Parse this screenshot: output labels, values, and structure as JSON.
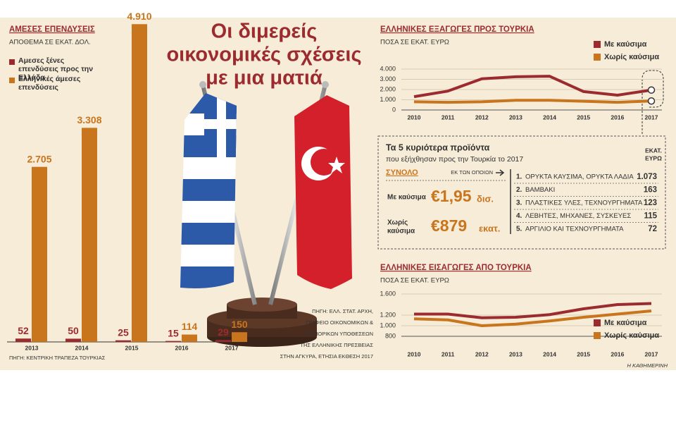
{
  "header": {
    "title_lines": [
      "Οι διμερείς",
      "οικονομικές σχέσεις",
      "με μια ματιά"
    ],
    "credit": "Η ΚΑΘΗΜΕΡΙΝΗ",
    "source_lines": [
      "ΠΗΓΗ: ΕΛΛ. ΣΤΑΤ. ΑΡΧΗ,",
      "ΓΡΑΦΕΙΟ ΟΙΚΟΝΟΜΙΚΩΝ &",
      "ΕΜΠΟΡΙΚΩΝ ΥΠΟΘΕΣΕΩΝ",
      "ΤΗΣ ΕΛΛΗΝΙΚΗΣ ΠΡΕΣΒΕΙΑΣ",
      "ΣΤΗΝ ΑΓΚΥΡΑ, ΕΤΗΣΙΑ ΕΚΘΕΣΗ 2017"
    ]
  },
  "chart_data": [
    {
      "type": "bar",
      "title": "ΑΜΕΣΕΣ ΕΠΕΝΔΥΣΕΙΣ",
      "subtitle": "ΑΠΟΘΕΜΑ ΣΕ ΕΚΑΤ. ΔΟΛ.",
      "source": "ΠΗΓΗ: ΚΕΝΤΡΙΚΗ ΤΡΑΠΕΖΑ ΤΟΥΡΚΙΑΣ",
      "categories": [
        "2013",
        "2014",
        "2015",
        "2016",
        "2017"
      ],
      "series": [
        {
          "name": "Αμεσες ξένες επενδύσεις προς την Ελλάδα",
          "color": "#9c2b30",
          "values": [
            52,
            50,
            25,
            15,
            29
          ]
        },
        {
          "name": "Ελληνικές άμεσες επενδύσεις",
          "color": "#c9751e",
          "values": [
            2705,
            3308,
            4910,
            114,
            150
          ],
          "value_labels": [
            "2.705",
            "3.308",
            "4.910",
            "114",
            "150"
          ]
        }
      ],
      "ylim": [
        0,
        5000
      ]
    },
    {
      "type": "line",
      "title": "ΕΛΛΗΝΙΚΕΣ ΕΞΑΓΩΓΕΣ ΠΡΟΣ ΤΟΥΡΚΙΑ",
      "subtitle": "ΠΟΣΑ ΣΕ ΕΚΑΤ. ΕΥΡΩ",
      "categories": [
        "2010",
        "2011",
        "2012",
        "2013",
        "2014",
        "2015",
        "2016",
        "2017"
      ],
      "series": [
        {
          "name": "Με καύσιμα",
          "color": "#9c2b30",
          "values": [
            1300,
            1850,
            3050,
            3250,
            3300,
            1800,
            1450,
            1950
          ]
        },
        {
          "name": "Χωρίς καύσιμα",
          "color": "#c9751e",
          "values": [
            800,
            750,
            800,
            950,
            950,
            850,
            750,
            879
          ]
        }
      ],
      "ylim": [
        0,
        4000
      ],
      "yticks": [
        0,
        {
          "value": 1000,
          "label": "1.000"
        },
        {
          "value": 2000,
          "label": "2.000"
        },
        {
          "value": 3000,
          "label": "3.000"
        },
        {
          "value": 4000,
          "label": "4.000"
        }
      ],
      "grid": true
    },
    {
      "type": "line",
      "title": "ΕΛΛΗΝΙΚΕΣ ΕΙΣΑΓΩΓΕΣ ΑΠΟ ΤΟΥΡΚΙΑ",
      "subtitle": "ΠΟΣΑ ΣΕ ΕΚΑΤ. ΕΥΡΩ",
      "categories": [
        "2010",
        "2011",
        "2012",
        "2013",
        "2014",
        "2015",
        "2016",
        "2017"
      ],
      "series": [
        {
          "name": "Με καύσιμα",
          "color": "#9c2b30",
          "values": [
            1220,
            1220,
            1150,
            1160,
            1210,
            1320,
            1400,
            1420
          ]
        },
        {
          "name": "Χωρίς καύσιμα",
          "color": "#c9751e",
          "values": [
            1130,
            1110,
            1000,
            1030,
            1090,
            1160,
            1220,
            1280
          ]
        }
      ],
      "ylim": [
        800,
        1600
      ],
      "yticks": [
        {
          "value": 1600,
          "label": "1.600"
        },
        {
          "value": 1200,
          "label": "1.200"
        },
        {
          "value": 1000,
          "label": "1.000"
        },
        800
      ],
      "grid": true
    }
  ],
  "products_box": {
    "title": "Τα 5 κυριότερα προϊόντα",
    "subtitle": "που εξήχθησαν προς την Τουρκία το 2017",
    "unit_lines": [
      "ΕΚΑΤ.",
      "ΕΥΡΩ"
    ],
    "total_label": "ΣΥΝΟΛΟ",
    "of_which": "ΕΚ ΤΩΝ ΟΠΟΙΩΝ",
    "totals": [
      {
        "label_lines": [
          "Με καύσιμα"
        ],
        "amount": "€1,95",
        "unit": "δισ."
      },
      {
        "label_lines": [
          "Χωρίς",
          "καύσιμα"
        ],
        "amount": "€879",
        "unit": "εκατ."
      }
    ],
    "rows": [
      [
        "1.",
        "ΟΡΥΚΤΑ ΚΑΥΣΙΜΑ, ΟΡΥΚΤΑ ΛΑΔΙΑ",
        "1.073"
      ],
      [
        "2.",
        "ΒΑΜΒΑΚΙ",
        "163"
      ],
      [
        "3.",
        "ΠΛΑΣΤΙΚΕΣ ΥΛΕΣ, ΤΕΧΝΟΥΡΓΗΜΑΤΑ",
        "123"
      ],
      [
        "4.",
        "ΛΕΒΗΤΕΣ, ΜΗΧΑΝΕΣ, ΣΥΣΚΕΥΕΣ",
        "115"
      ],
      [
        "5.",
        "ΑΡΓΙΛΙΟ ΚΑΙ ΤΕΧΝΟΥΡΓΗΜΑΤΑ",
        "72"
      ]
    ]
  }
}
